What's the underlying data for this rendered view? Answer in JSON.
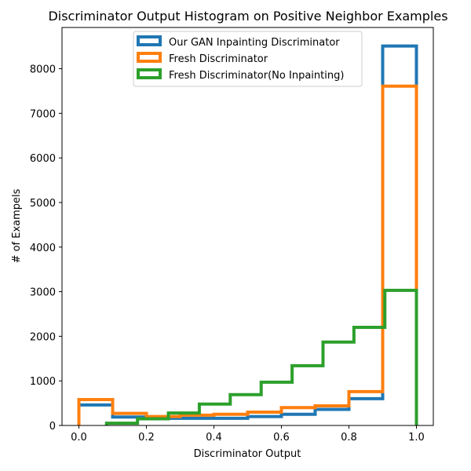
{
  "chart_data": {
    "type": "histogram-step",
    "title": "Discriminator Output Histogram on Positive Neighbor Examples",
    "xlabel": "Discriminator Output",
    "ylabel": "# of Exampels",
    "xlim": [
      -0.05,
      1.05
    ],
    "ylim": [
      0,
      8925
    ],
    "xticks": [
      0.0,
      0.2,
      0.4,
      0.6,
      0.8,
      1.0
    ],
    "xtick_labels": [
      "0.0",
      "0.2",
      "0.4",
      "0.6",
      "0.8",
      "1.0"
    ],
    "yticks": [
      0,
      1000,
      2000,
      3000,
      4000,
      5000,
      6000,
      7000,
      8000
    ],
    "ytick_labels": [
      "0",
      "1000",
      "2000",
      "3000",
      "4000",
      "5000",
      "6000",
      "7000",
      "8000"
    ],
    "legend_position": "top-center",
    "series": [
      {
        "name": "Our GAN Inpainting Discriminator",
        "color": "#1f77b4",
        "bin_edges": [
          0.0,
          0.1,
          0.2,
          0.3,
          0.4,
          0.5,
          0.6,
          0.7,
          0.8,
          0.9,
          1.0
        ],
        "counts": [
          460,
          190,
          160,
          160,
          160,
          200,
          250,
          360,
          600,
          8510
        ]
      },
      {
        "name": "Fresh Discriminator",
        "color": "#ff7f0e",
        "bin_edges": [
          0.0,
          0.1,
          0.2,
          0.3,
          0.4,
          0.5,
          0.6,
          0.7,
          0.8,
          0.9,
          1.0
        ],
        "counts": [
          580,
          270,
          200,
          230,
          250,
          300,
          400,
          440,
          760,
          7610
        ]
      },
      {
        "name": "Fresh Discriminator(No Inpainting)",
        "color": "#2ca02c",
        "bin_edges": [
          0.082,
          0.1736,
          0.2652,
          0.3568,
          0.4484,
          0.54,
          0.6316,
          0.7232,
          0.8148,
          0.9064,
          1.0
        ],
        "counts": [
          50,
          150,
          280,
          480,
          690,
          970,
          1340,
          1870,
          2200,
          3030
        ]
      }
    ]
  }
}
